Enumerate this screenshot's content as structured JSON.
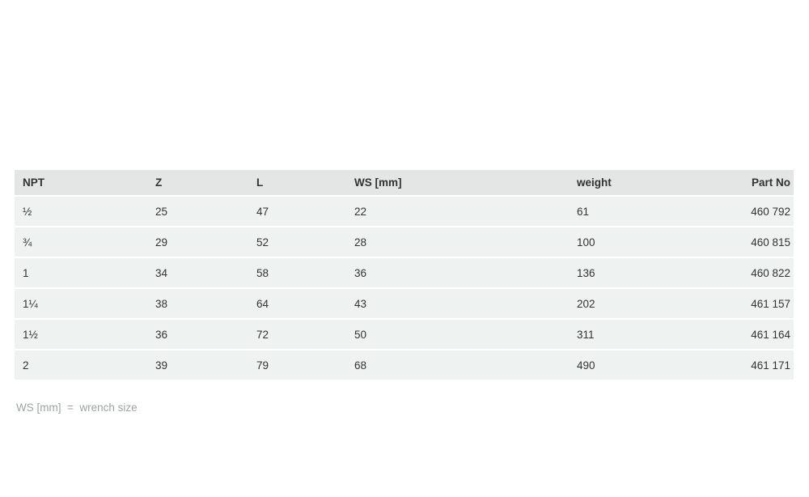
{
  "colors": {
    "page_bg": "#ffffff",
    "header_bg": "#e3e6e5",
    "row_bg": "#eef2f1",
    "row_separator": "#ffffff",
    "text": "#333333",
    "footnote_text": "#9da2a3"
  },
  "table": {
    "columns": [
      {
        "label": "NPT",
        "align": "left"
      },
      {
        "label": "Z",
        "align": "left"
      },
      {
        "label": "L",
        "align": "left"
      },
      {
        "label": "WS [mm]",
        "align": "left"
      },
      {
        "label": "weight",
        "align": "left"
      },
      {
        "label": "Part No",
        "align": "right"
      }
    ],
    "rows": [
      [
        "½",
        "25",
        "47",
        "22",
        "61",
        "460 792"
      ],
      [
        "¾",
        "29",
        "52",
        "28",
        "100",
        "460 815"
      ],
      [
        "1",
        "34",
        "58",
        "36",
        "136",
        "460 822"
      ],
      [
        "1¼",
        "38",
        "64",
        "43",
        "202",
        "461 157"
      ],
      [
        "1½",
        "36",
        "72",
        "50",
        "311",
        "461 164"
      ],
      [
        "2",
        "39",
        "79",
        "68",
        "490",
        "461 171"
      ]
    ]
  },
  "footnote": "WS [mm]  =  wrench size"
}
